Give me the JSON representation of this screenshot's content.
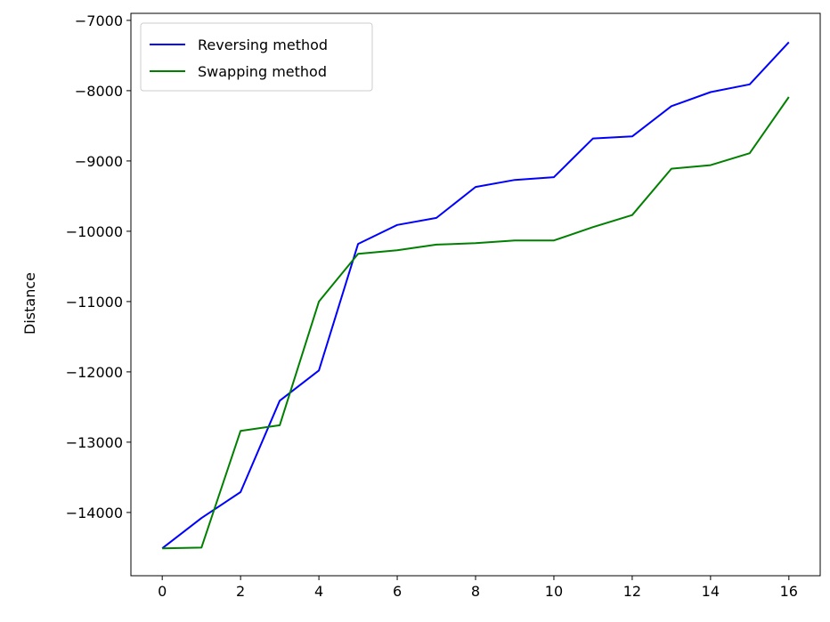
{
  "chart_data": {
    "type": "line",
    "title": "",
    "xlabel": "",
    "ylabel": "Distance",
    "xlim": [
      -0.8,
      16.8
    ],
    "ylim": [
      -14900,
      -6900
    ],
    "x_ticks": [
      0,
      2,
      4,
      6,
      8,
      10,
      12,
      14,
      16
    ],
    "y_ticks": [
      -14000,
      -13000,
      -12000,
      -11000,
      -10000,
      -9000,
      -8000,
      -7000
    ],
    "x_tick_labels": [
      "0",
      "2",
      "4",
      "6",
      "8",
      "10",
      "12",
      "14",
      "16"
    ],
    "y_tick_labels": [
      "−14000",
      "−13000",
      "−12000",
      "−11000",
      "−10000",
      "−9000",
      "−8000",
      "−7000"
    ],
    "x": [
      0,
      1,
      2,
      3,
      4,
      5,
      6,
      7,
      8,
      9,
      10,
      11,
      12,
      13,
      14,
      15,
      16
    ],
    "series": [
      {
        "name": "Reversing method",
        "color": "#0000ff",
        "values": [
          -14510,
          -14080,
          -13710,
          -12410,
          -11980,
          -10180,
          -9910,
          -9810,
          -9370,
          -9270,
          -9230,
          -8680,
          -8650,
          -8220,
          -8020,
          -7910,
          -7310
        ]
      },
      {
        "name": "Swapping method",
        "color": "#008000",
        "values": [
          -14510,
          -14500,
          -12840,
          -12760,
          -11000,
          -10320,
          -10270,
          -10190,
          -10170,
          -10130,
          -10130,
          -9940,
          -9770,
          -9110,
          -9060,
          -8890,
          -8090
        ]
      }
    ],
    "legend_position": "upper-left",
    "grid": false
  }
}
